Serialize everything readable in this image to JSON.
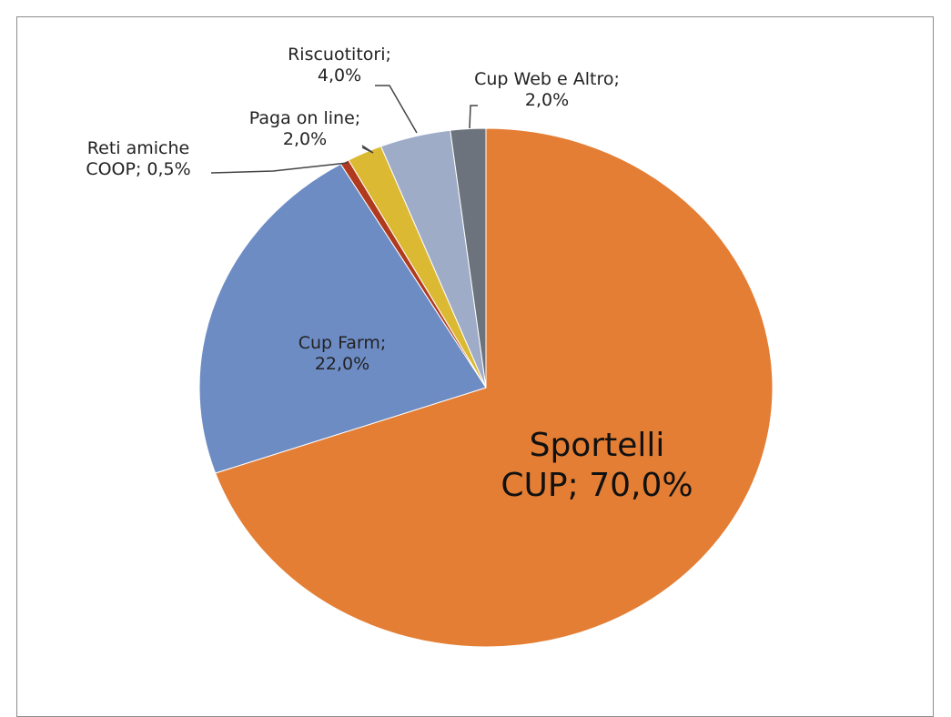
{
  "chart_data": {
    "type": "pie",
    "categories": [
      "Sportelli CUP;",
      "Cup Farm;",
      "Reti amiche COOP;",
      "Paga on line;",
      "Riscuotitori;",
      "Cup Web e Altro;"
    ],
    "values": [
      70,
      22,
      0.5,
      2,
      4,
      2
    ],
    "value_labels": [
      "70,0%",
      "22,0%",
      "0,5%",
      "2,0%",
      "4,0%",
      "2,0%"
    ],
    "colors": [
      "#e47e35",
      "#6e8cc4",
      "#b03a1e",
      "#dcb933",
      "#9facc7",
      "#6c737c"
    ]
  }
}
